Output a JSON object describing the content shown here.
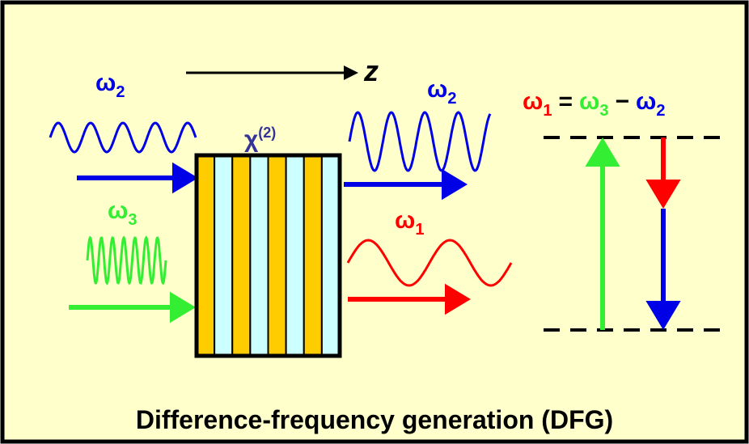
{
  "axis_label": "z",
  "crystal": {
    "symbol": "χ",
    "superscript": "(2)"
  },
  "waves": [
    {
      "symbol": "ω",
      "subscript": "2"
    },
    {
      "symbol": "ω",
      "subscript": "3"
    },
    {
      "symbol": "ω",
      "subscript": "2"
    },
    {
      "symbol": "ω",
      "subscript": "1"
    }
  ],
  "equation": {
    "terms": [
      {
        "symbol": "ω",
        "subscript": "1"
      },
      {
        "symbol": "ω",
        "subscript": "3"
      },
      {
        "symbol": "ω",
        "subscript": "2"
      }
    ],
    "operators": [
      "=",
      "−"
    ]
  },
  "caption": "Difference-frequency generation (DFG)"
}
